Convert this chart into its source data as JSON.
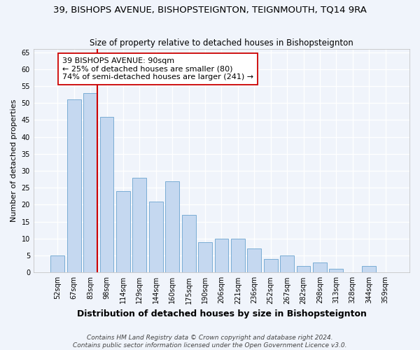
{
  "title": "39, BISHOPS AVENUE, BISHOPSTEIGNTON, TEIGNMOUTH, TQ14 9RA",
  "subtitle": "Size of property relative to detached houses in Bishopsteignton",
  "xlabel": "Distribution of detached houses by size in Bishopsteignton",
  "ylabel": "Number of detached properties",
  "categories": [
    "52sqm",
    "67sqm",
    "83sqm",
    "98sqm",
    "114sqm",
    "129sqm",
    "144sqm",
    "160sqm",
    "175sqm",
    "190sqm",
    "206sqm",
    "221sqm",
    "236sqm",
    "252sqm",
    "267sqm",
    "282sqm",
    "298sqm",
    "313sqm",
    "328sqm",
    "344sqm",
    "359sqm"
  ],
  "values": [
    5,
    51,
    53,
    46,
    24,
    28,
    21,
    27,
    17,
    9,
    10,
    10,
    7,
    4,
    5,
    2,
    3,
    1,
    0,
    2,
    0
  ],
  "bar_color": "#c5d8f0",
  "bar_edge_color": "#7aadd4",
  "vline_color": "#cc0000",
  "annotation_text": "39 BISHOPS AVENUE: 90sqm\n← 25% of detached houses are smaller (80)\n74% of semi-detached houses are larger (241) →",
  "annotation_box_color": "#ffffff",
  "annotation_box_edge_color": "#cc0000",
  "ylim": [
    0,
    66
  ],
  "yticks": [
    0,
    5,
    10,
    15,
    20,
    25,
    30,
    35,
    40,
    45,
    50,
    55,
    60,
    65
  ],
  "footer": "Contains HM Land Registry data © Crown copyright and database right 2024.\nContains public sector information licensed under the Open Government Licence v3.0.",
  "background_color": "#f0f4fb",
  "grid_color": "#ffffff",
  "title_fontsize": 9.5,
  "subtitle_fontsize": 8.5,
  "xlabel_fontsize": 9,
  "ylabel_fontsize": 8,
  "tick_fontsize": 7,
  "footer_fontsize": 6.5,
  "annotation_fontsize": 8
}
